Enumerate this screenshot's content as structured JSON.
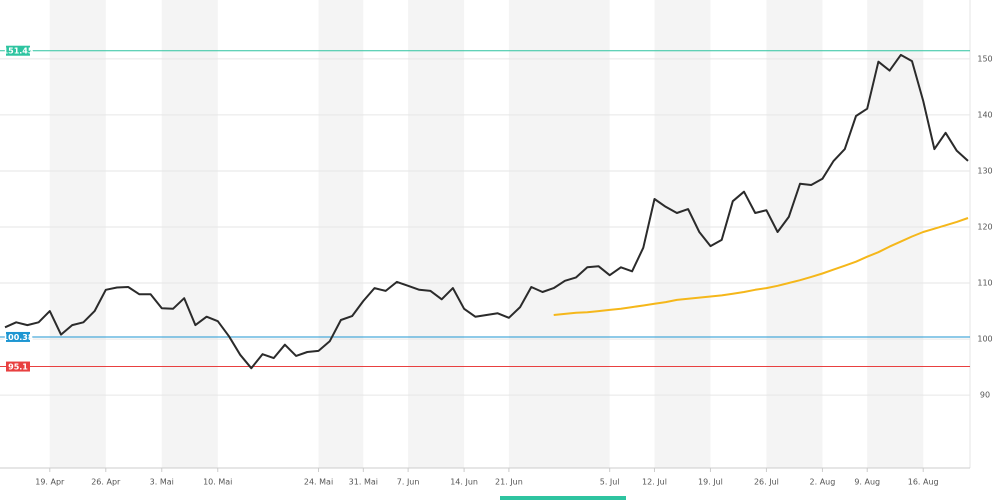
{
  "chart_data": {
    "type": "line",
    "categories": [
      null,
      null,
      null,
      null,
      "19. Apr",
      null,
      null,
      null,
      null,
      "26. Apr",
      null,
      null,
      null,
      null,
      "3. Mai",
      null,
      null,
      null,
      null,
      "10. Mai",
      null,
      null,
      null,
      null,
      null,
      null,
      null,
      null,
      "24. Mai",
      null,
      null,
      null,
      "31. Mai",
      null,
      null,
      null,
      "7. Jun",
      null,
      null,
      null,
      null,
      "14. Jun",
      null,
      null,
      null,
      "21. Jun",
      null,
      null,
      null,
      null,
      null,
      null,
      null,
      null,
      "5. Jul",
      null,
      null,
      null,
      "12. Jul",
      null,
      null,
      null,
      null,
      "19. Jul",
      null,
      null,
      null,
      null,
      "26. Jul",
      null,
      null,
      null,
      null,
      "2. Aug",
      null,
      null,
      null,
      "9. Aug",
      null,
      null,
      null,
      null,
      "16. Aug",
      null,
      null,
      null,
      null
    ],
    "series": [
      {
        "color": "#2b2b2b",
        "values": [
          102.1,
          103,
          102.5,
          103,
          105,
          100.8,
          102.5,
          103,
          105,
          108.8,
          109.2,
          109.3,
          108,
          108,
          105.5,
          105.4,
          107.3,
          102.5,
          104,
          103.2,
          100.5,
          97.2,
          94.8,
          97.3,
          96.6,
          99,
          97,
          97.7,
          97.9,
          99.6,
          103.4,
          104.1,
          106.8,
          109.1,
          108.6,
          110.2,
          109.5,
          108.8,
          108.6,
          107.1,
          109.1,
          105.4,
          104,
          104.3,
          104.6,
          103.8,
          105.7,
          109.3,
          108.4,
          109.1,
          110.4,
          111,
          112.8,
          113,
          111.4,
          112.8,
          112.1,
          116.3,
          125,
          123.6,
          122.5,
          123.2,
          119.1,
          116.6,
          117.7,
          124.6,
          126.3,
          122.5,
          123,
          119.1,
          121.8,
          127.7,
          127.5,
          128.6,
          131.8,
          133.9,
          139.8,
          141.1,
          149.5,
          147.9,
          150.7,
          149.6,
          142.5,
          133.9,
          136.8,
          133.6,
          131.8
        ]
      },
      {
        "color": "#f5b71a",
        "values": [
          null,
          null,
          null,
          null,
          null,
          null,
          null,
          null,
          null,
          null,
          null,
          null,
          null,
          null,
          null,
          null,
          null,
          null,
          null,
          null,
          null,
          null,
          null,
          null,
          null,
          null,
          null,
          null,
          null,
          null,
          null,
          null,
          null,
          null,
          null,
          null,
          null,
          null,
          null,
          null,
          null,
          null,
          null,
          null,
          null,
          null,
          null,
          null,
          null,
          104.3,
          104.5,
          104.7,
          104.8,
          105.0,
          105.2,
          105.4,
          105.7,
          106.0,
          106.3,
          106.6,
          107.0,
          107.2,
          107.4,
          107.6,
          107.8,
          108.1,
          108.4,
          108.8,
          109.1,
          109.5,
          110.0,
          110.5,
          111.1,
          111.7,
          112.4,
          113.1,
          113.8,
          114.7,
          115.5,
          116.5,
          117.4,
          118.3,
          119.1,
          119.7,
          120.3,
          120.9,
          121.6
        ]
      }
    ],
    "reference_lines": [
      {
        "value": 151.45,
        "color": "#2ec4a0"
      },
      {
        "value": 100.38,
        "color": "#1e96d2"
      },
      {
        "value": 95.1,
        "color": "#e84040"
      }
    ],
    "ylim": [
      77,
      160.5
    ],
    "yticks": [
      90,
      100,
      110,
      120,
      130,
      140,
      150
    ],
    "grid": true
  }
}
